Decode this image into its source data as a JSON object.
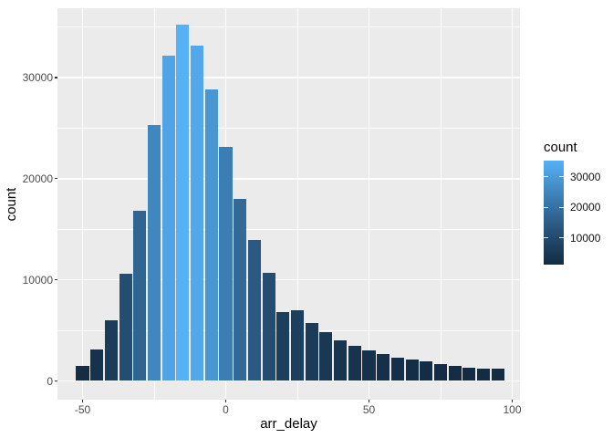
{
  "chart_data": {
    "type": "bar",
    "subtype": "histogram",
    "title": "",
    "xlabel": "arr_delay",
    "ylabel": "count",
    "bin_width": 5,
    "categories": [
      -50,
      -45,
      -40,
      -35,
      -30,
      -25,
      -20,
      -15,
      -10,
      -5,
      0,
      5,
      10,
      15,
      20,
      25,
      30,
      35,
      40,
      45,
      50,
      55,
      60,
      65,
      70,
      75,
      80,
      85,
      90,
      95
    ],
    "values": [
      1500,
      3100,
      6000,
      10600,
      16800,
      25300,
      32200,
      35200,
      33200,
      28800,
      23100,
      18000,
      13900,
      10700,
      6800,
      7000,
      5700,
      4800,
      4000,
      3500,
      3000,
      2700,
      2300,
      2100,
      1900,
      1700,
      1500,
      1300,
      1250,
      1200
    ],
    "x_ticks": [
      -50,
      0,
      50,
      100
    ],
    "x_minor_ticks": [
      -25,
      25,
      75
    ],
    "y_ticks": [
      0,
      10000,
      20000,
      30000
    ],
    "y_minor_ticks": [
      5000,
      15000,
      25000,
      35000
    ],
    "xlim": [
      -58.8,
      102.7
    ],
    "ylim": [
      0,
      36800
    ],
    "grid": true,
    "legend": {
      "title": "count",
      "position": "right",
      "ticks": [
        10000,
        20000,
        30000
      ]
    },
    "fill_domain": [
      1200,
      35200
    ],
    "colors": {
      "fill_low": "#132B43",
      "fill_high": "#56B1F7",
      "panel_bg": "#EBEBEB",
      "grid": "#FFFFFF",
      "axis_tick": "#333333",
      "tick_label": "#4D4D4D",
      "title_text": "#000000",
      "figure_bg": "#FFFFFF"
    }
  }
}
